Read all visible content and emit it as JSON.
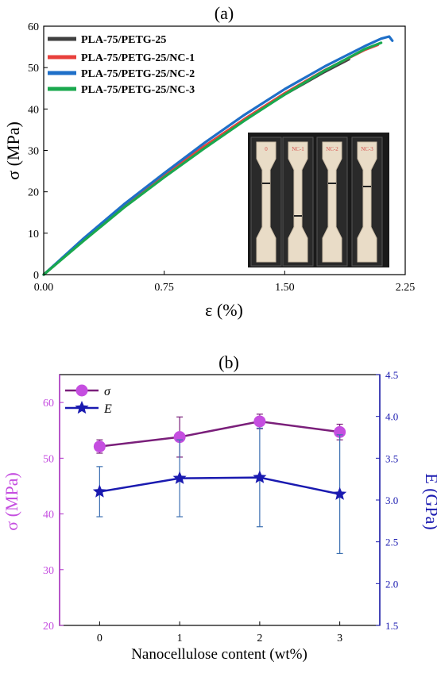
{
  "chart_data": [
    {
      "panel_label": "(a)",
      "type": "line",
      "xlabel": "ε (%)",
      "ylabel": "σ (MPa)",
      "xlim": [
        0,
        2.25
      ],
      "ylim": [
        0,
        60
      ],
      "xticks": [
        "0.00",
        "0.75",
        "1.50",
        "2.25"
      ],
      "yticks": [
        "0",
        "10",
        "20",
        "30",
        "40",
        "50",
        "60"
      ],
      "grid": false,
      "legend": "top-left",
      "inset": "photo of four dog-bone tensile specimens labeled 0, NC-1, NC-2, NC-3",
      "inset_labels": [
        "0",
        "NC-1",
        "NC-2",
        "NC-3"
      ],
      "series": [
        {
          "name": "PLA-75/PETG-25",
          "color": "#404040",
          "x": [
            0,
            0.25,
            0.5,
            0.75,
            1.0,
            1.25,
            1.5,
            1.75,
            1.9
          ],
          "y": [
            0,
            8.5,
            16.5,
            24,
            31,
            37.5,
            43.5,
            49,
            52
          ]
        },
        {
          "name": "PLA-75/PETG-25/NC-1",
          "color": "#e8403c",
          "x": [
            0,
            0.25,
            0.5,
            0.75,
            1.0,
            1.25,
            1.5,
            1.75,
            2.0,
            2.08
          ],
          "y": [
            0,
            8.4,
            16.4,
            23.9,
            31,
            37.6,
            43.8,
            49.4,
            54.3,
            55.5
          ]
        },
        {
          "name": "PLA-75/PETG-25/NC-2",
          "color": "#1f6fc8",
          "x": [
            0,
            0.25,
            0.5,
            0.75,
            1.0,
            1.25,
            1.5,
            1.75,
            2.0,
            2.1,
            2.15,
            2.17
          ],
          "y": [
            0,
            8.8,
            17,
            24.5,
            31.8,
            38.6,
            44.8,
            50.3,
            55.2,
            57,
            57.5,
            56.5
          ]
        },
        {
          "name": "PLA-75/PETG-25/NC-3",
          "color": "#1aa84e",
          "x": [
            0,
            0.25,
            0.5,
            0.75,
            1.0,
            1.25,
            1.5,
            1.75,
            2.0,
            2.1
          ],
          "y": [
            0,
            8.2,
            16.2,
            23.5,
            30.5,
            37.2,
            43.5,
            49.3,
            54.5,
            56
          ]
        }
      ]
    },
    {
      "panel_label": "(b)",
      "type": "line",
      "xlabel": "Nanocellulose content (wt%)",
      "ylabel_left": "σ (MPa)",
      "ylabel_right": "E (GPa)",
      "categories": [
        "0",
        "1",
        "2",
        "3"
      ],
      "x": [
        0,
        1,
        2,
        3
      ],
      "xlim": [
        -0.5,
        3.5
      ],
      "ylim_left": [
        20,
        65
      ],
      "ylim_right": [
        1.5,
        4.5
      ],
      "yticks_left": [
        "20",
        "30",
        "40",
        "50",
        "60"
      ],
      "yticks_right": [
        "1.5",
        "2.0",
        "2.5",
        "3.0",
        "3.5",
        "4.0",
        "4.5"
      ],
      "legend": "top-left",
      "series": [
        {
          "name": "σ",
          "axis": "left",
          "color": "#c54ee0",
          "line_color": "#7a1f7a",
          "marker": "circle",
          "values": [
            52.1,
            53.8,
            56.6,
            54.7
          ],
          "errors": [
            1.2,
            3.6,
            1.3,
            1.4
          ]
        },
        {
          "name": "E",
          "axis": "right",
          "color": "#1a1ab0",
          "line_color": "#1a1ab0",
          "marker": "star",
          "values": [
            3.1,
            3.26,
            3.27,
            3.07
          ],
          "errors": [
            0.3,
            0.46,
            0.59,
            0.71
          ]
        }
      ]
    }
  ]
}
